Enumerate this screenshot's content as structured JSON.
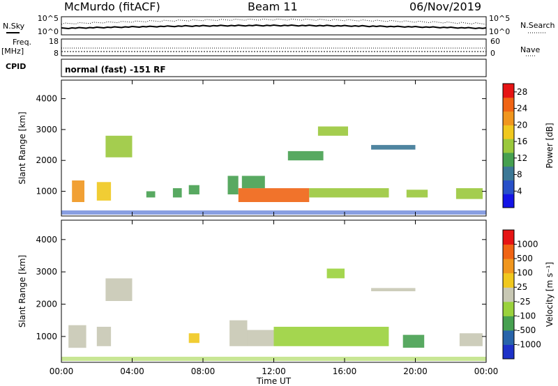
{
  "header": {
    "station": "McMurdo (fitACF)",
    "beam": "Beam 11",
    "date": "06/Nov/2019"
  },
  "top_panels": {
    "nsky_label": "N.Sky",
    "nsky_ticks": [
      "10^5",
      "10^0"
    ],
    "nsearch_label": "N.Search",
    "nsearch_ticks": [
      "10^5",
      "10^0"
    ],
    "freq_label": "Freq.",
    "freq_unit": "[MHz]",
    "freq_ticks": [
      "18",
      "8"
    ],
    "nave_label": "Nave",
    "nave_ticks": [
      "60",
      "0"
    ],
    "cpid_label": "CPID",
    "cpid_text": "normal (fast) -151 RF"
  },
  "colors": {
    "power_scale": [
      "#1414e6",
      "#2850c8",
      "#3c7896",
      "#46a050",
      "#9ac83c",
      "#f0c81e",
      "#f0961e",
      "#f06414",
      "#e61414"
    ],
    "velocity_scale": [
      "#e61414",
      "#f06414",
      "#f0961e",
      "#f0c81e",
      "#c8c8b4",
      "#9ad23c",
      "#46a050",
      "#2864aa",
      "#1e32c8"
    ]
  },
  "chart_data": [
    {
      "type": "heatmap",
      "name_label": "Power",
      "ylabel": "Slant Range [km]",
      "xlabel": "Time UT",
      "x_ticks": [
        "00:00",
        "04:00",
        "08:00",
        "12:00",
        "16:00",
        "20:00",
        "00:00"
      ],
      "y_ticks": [
        "1000",
        "2000",
        "3000",
        "4000"
      ],
      "ylim": [
        200,
        4600
      ],
      "xlim": [
        0,
        24
      ],
      "colorbar": {
        "label": "Power [dB]",
        "ticks": [
          "4",
          "8",
          "12",
          "16",
          "20",
          "24",
          "28"
        ],
        "range": [
          0,
          30
        ]
      },
      "regions": [
        {
          "t": [
            0.6,
            1.3
          ],
          "r": [
            650,
            1350
          ],
          "v": 22
        },
        {
          "t": [
            2.0,
            2.8
          ],
          "r": [
            700,
            1300
          ],
          "v": 18
        },
        {
          "t": [
            2.5,
            4.0
          ],
          "r": [
            2100,
            2800
          ],
          "v": 14
        },
        {
          "t": [
            4.8,
            5.3
          ],
          "r": [
            800,
            1000
          ],
          "v": 10
        },
        {
          "t": [
            6.3,
            6.8
          ],
          "r": [
            800,
            1100
          ],
          "v": 12
        },
        {
          "t": [
            7.2,
            7.8
          ],
          "r": [
            900,
            1200
          ],
          "v": 12
        },
        {
          "t": [
            9.4,
            10.0
          ],
          "r": [
            900,
            1500
          ],
          "v": 12
        },
        {
          "t": [
            10.0,
            14.0
          ],
          "r": [
            650,
            1100
          ],
          "v": 25
        },
        {
          "t": [
            10.2,
            11.5
          ],
          "r": [
            1100,
            1500
          ],
          "v": 12
        },
        {
          "t": [
            14.0,
            18.5
          ],
          "r": [
            800,
            1100
          ],
          "v": 15
        },
        {
          "t": [
            14.5,
            16.2
          ],
          "r": [
            2800,
            3100
          ],
          "v": 14
        },
        {
          "t": [
            12.8,
            14.8
          ],
          "r": [
            2000,
            2300
          ],
          "v": 10
        },
        {
          "t": [
            17.5,
            20.0
          ],
          "r": [
            2350,
            2500
          ],
          "v": 8
        },
        {
          "t": [
            19.5,
            20.7
          ],
          "r": [
            800,
            1050
          ],
          "v": 14
        },
        {
          "t": [
            22.3,
            23.8
          ],
          "r": [
            750,
            1100
          ],
          "v": 16
        }
      ]
    },
    {
      "type": "heatmap",
      "name_label": "Velocity",
      "ylabel": "Slant Range [km]",
      "xlabel": "Time UT",
      "x_ticks": [
        "00:00",
        "04:00",
        "08:00",
        "12:00",
        "16:00",
        "20:00",
        "00:00"
      ],
      "y_ticks": [
        "1000",
        "2000",
        "3000",
        "4000"
      ],
      "ylim": [
        200,
        4600
      ],
      "xlim": [
        0,
        24
      ],
      "colorbar": {
        "label": "Velocity [m s⁻¹]",
        "ticks": [
          "1000",
          "500",
          "100",
          "25",
          "-25",
          "-100",
          "-500",
          "-1000"
        ],
        "range": [
          -1000,
          1000
        ]
      },
      "regions": [
        {
          "t": [
            0.4,
            1.4
          ],
          "r": [
            650,
            1350
          ],
          "v": 80
        },
        {
          "t": [
            2.0,
            2.8
          ],
          "r": [
            700,
            1300
          ],
          "v": 80
        },
        {
          "t": [
            2.5,
            4.0
          ],
          "r": [
            2100,
            2800
          ],
          "v": -50
        },
        {
          "t": [
            7.2,
            7.8
          ],
          "r": [
            800,
            1100
          ],
          "v": 150
        },
        {
          "t": [
            9.5,
            10.5
          ],
          "r": [
            700,
            1500
          ],
          "v": 90
        },
        {
          "t": [
            10.5,
            12.0
          ],
          "r": [
            700,
            1200
          ],
          "v": 0
        },
        {
          "t": [
            12.0,
            18.5
          ],
          "r": [
            700,
            1300
          ],
          "v": -300
        },
        {
          "t": [
            15.0,
            16.0
          ],
          "r": [
            2800,
            3100
          ],
          "v": -300
        },
        {
          "t": [
            17.5,
            20.0
          ],
          "r": [
            2400,
            2500
          ],
          "v": 0
        },
        {
          "t": [
            19.3,
            20.5
          ],
          "r": [
            650,
            1050
          ],
          "v": -400
        },
        {
          "t": [
            22.5,
            23.8
          ],
          "r": [
            700,
            1100
          ],
          "v": 80
        }
      ]
    }
  ]
}
